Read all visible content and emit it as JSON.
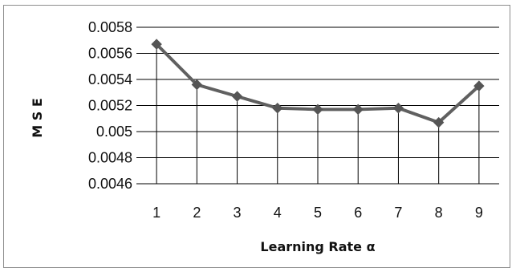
{
  "chart_data": {
    "type": "line",
    "title": "",
    "xlabel": "Learning Rate α",
    "ylabel": "M S E",
    "categories": [
      "1",
      "2",
      "3",
      "4",
      "5",
      "6",
      "7",
      "8",
      "9"
    ],
    "series": [
      {
        "values": [
          0.00567,
          0.00536,
          0.00527,
          0.00518,
          0.00517,
          0.00517,
          0.00518,
          0.00507,
          0.00535
        ]
      }
    ],
    "ylim": [
      0.0046,
      0.0058
    ],
    "yticks": [
      0.0046,
      0.0048,
      0.005,
      0.0052,
      0.0054,
      0.0056,
      0.0058
    ],
    "ytick_labels": [
      "0.0046",
      "0.0048",
      "0.005",
      "0.0052",
      "0.0054",
      "0.0056",
      "0.0058"
    ],
    "grid": "horizontal",
    "drop_lines": true,
    "legend": "none",
    "colors": {
      "line": "#606060",
      "marker": "#555555",
      "grid": "#000000",
      "drop_line": "#000000"
    }
  }
}
